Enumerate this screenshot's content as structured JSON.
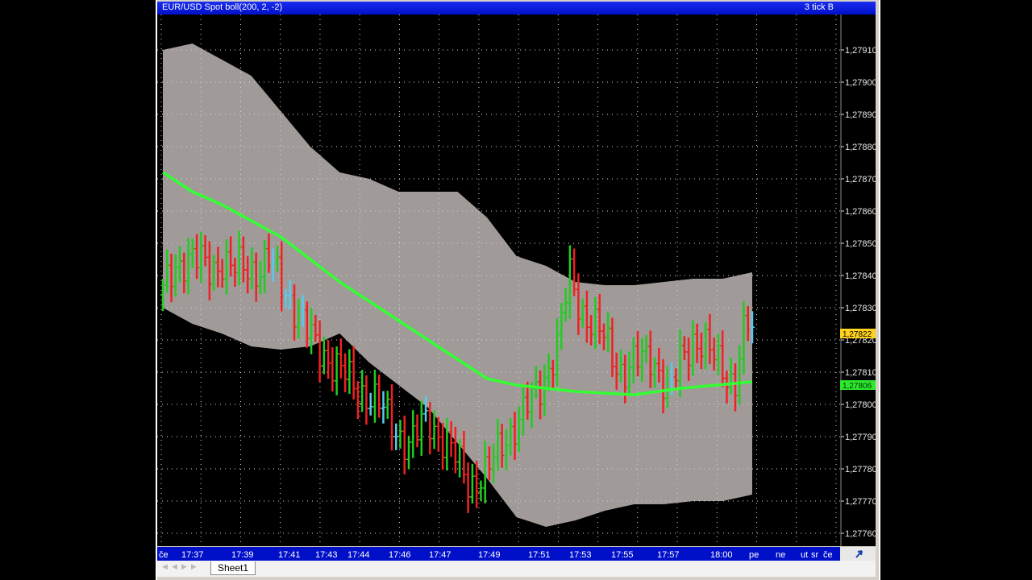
{
  "window": {
    "title": "EUR/USD Spot boll(200, 2, -2)",
    "right_label": "3 tick B"
  },
  "colors": {
    "plot_bg": "#000000",
    "band": "#a09a98",
    "ma": "#33ff33",
    "up": "#22cc22",
    "down": "#ee2222",
    "neutral": "#55ccee",
    "grid": "#d8d8d8",
    "frame_bar": "#0010c8",
    "price_marker": "#ffd21e",
    "ma_marker": "#2ee82e"
  },
  "sheet": {
    "tab_label": "Sheet1"
  },
  "chart_data": {
    "type": "line",
    "series": [
      {
        "name": "EUR/USD Spot",
        "kind": "price"
      },
      {
        "name": "boll(200, 2, -2)",
        "kind": "bollinger"
      }
    ],
    "y_axis": {
      "ticks": [
        "1,27910",
        "1,27900",
        "1,27890",
        "1,27880",
        "1,27870",
        "1,27860",
        "1,27850",
        "1,27840",
        "1,27830",
        "1,27820",
        "1,27810",
        "1,27800",
        "1,27790",
        "1,27780",
        "1,27770",
        "1,27760"
      ],
      "range": [
        1.27756,
        1.27921
      ]
    },
    "x_axis": {
      "labels": [
        "če",
        "17:37",
        "17:39",
        "17:41",
        "17:43",
        "17:44",
        "17:46",
        "17:47",
        "17:49",
        "17:51",
        "17:53",
        "17:55",
        "17:57",
        "18:00",
        "pe",
        "ne",
        "ut",
        "sr",
        "če"
      ]
    },
    "price_markers": [
      {
        "label": "1,27822",
        "value": 1.27822,
        "kind": "price"
      },
      {
        "label": "1,27806",
        "value": 1.27806,
        "kind": "ma"
      }
    ],
    "moving_average": [
      [
        0.0,
        1.27872
      ],
      [
        0.05,
        1.27866
      ],
      [
        0.1,
        1.27862
      ],
      [
        0.15,
        1.27857
      ],
      [
        0.2,
        1.27852
      ],
      [
        0.25,
        1.27845
      ],
      [
        0.3,
        1.27838
      ],
      [
        0.35,
        1.27832
      ],
      [
        0.4,
        1.27826
      ],
      [
        0.45,
        1.2782
      ],
      [
        0.5,
        1.27814
      ],
      [
        0.55,
        1.27808
      ],
      [
        0.6,
        1.27806
      ],
      [
        0.7,
        1.27804
      ],
      [
        0.8,
        1.27803
      ],
      [
        0.88,
        1.27805
      ],
      [
        1.0,
        1.27807
      ]
    ],
    "upper_band": [
      [
        0.0,
        1.2791
      ],
      [
        0.05,
        1.27912
      ],
      [
        0.1,
        1.27907
      ],
      [
        0.15,
        1.27902
      ],
      [
        0.2,
        1.27891
      ],
      [
        0.25,
        1.2788
      ],
      [
        0.3,
        1.27872
      ],
      [
        0.35,
        1.2787
      ],
      [
        0.4,
        1.27866
      ],
      [
        0.45,
        1.27866
      ],
      [
        0.5,
        1.27866
      ],
      [
        0.55,
        1.27858
      ],
      [
        0.6,
        1.27846
      ],
      [
        0.65,
        1.27843
      ],
      [
        0.7,
        1.27838
      ],
      [
        0.75,
        1.27837
      ],
      [
        0.8,
        1.27837
      ],
      [
        0.85,
        1.27838
      ],
      [
        0.9,
        1.27839
      ],
      [
        0.95,
        1.27839
      ],
      [
        1.0,
        1.27841
      ]
    ],
    "lower_band": [
      [
        0.0,
        1.2783
      ],
      [
        0.05,
        1.27825
      ],
      [
        0.1,
        1.27822
      ],
      [
        0.15,
        1.27818
      ],
      [
        0.2,
        1.27817
      ],
      [
        0.25,
        1.27818
      ],
      [
        0.3,
        1.27822
      ],
      [
        0.35,
        1.27813
      ],
      [
        0.4,
        1.27806
      ],
      [
        0.45,
        1.27799
      ],
      [
        0.5,
        1.27788
      ],
      [
        0.55,
        1.27777
      ],
      [
        0.6,
        1.27765
      ],
      [
        0.65,
        1.27762
      ],
      [
        0.7,
        1.27764
      ],
      [
        0.75,
        1.27767
      ],
      [
        0.8,
        1.27769
      ],
      [
        0.85,
        1.27769
      ],
      [
        0.9,
        1.2777
      ],
      [
        0.95,
        1.2777
      ],
      [
        1.0,
        1.27772
      ]
    ],
    "price_path": [
      [
        0.0,
        1.27834
      ],
      [
        0.02,
        1.27843
      ],
      [
        0.04,
        1.27846
      ],
      [
        0.06,
        1.27844
      ],
      [
        0.08,
        1.27842
      ],
      [
        0.1,
        1.27845
      ],
      [
        0.12,
        1.27841
      ],
      [
        0.14,
        1.27843
      ],
      [
        0.16,
        1.27842
      ],
      [
        0.18,
        1.27844
      ],
      [
        0.2,
        1.27838
      ],
      [
        0.22,
        1.27832
      ],
      [
        0.25,
        1.2782
      ],
      [
        0.28,
        1.27815
      ],
      [
        0.32,
        1.27806
      ],
      [
        0.35,
        1.27803
      ],
      [
        0.38,
        1.27796
      ],
      [
        0.42,
        1.27787
      ],
      [
        0.45,
        1.27796
      ],
      [
        0.48,
        1.27788
      ],
      [
        0.52,
        1.27776
      ],
      [
        0.55,
        1.27778
      ],
      [
        0.58,
        1.2779
      ],
      [
        0.61,
        1.27796
      ],
      [
        0.64,
        1.27806
      ],
      [
        0.67,
        1.27818
      ],
      [
        0.69,
        1.2784
      ],
      [
        0.71,
        1.2783
      ],
      [
        0.73,
        1.27824
      ],
      [
        0.75,
        1.2782
      ],
      [
        0.78,
        1.2781
      ],
      [
        0.8,
        1.27812
      ],
      [
        0.83,
        1.27816
      ],
      [
        0.86,
        1.27802
      ],
      [
        0.88,
        1.27815
      ],
      [
        0.9,
        1.27821
      ],
      [
        0.93,
        1.27815
      ],
      [
        0.95,
        1.27812
      ],
      [
        0.97,
        1.27806
      ],
      [
        0.99,
        1.27825
      ],
      [
        1.0,
        1.27822
      ]
    ]
  }
}
